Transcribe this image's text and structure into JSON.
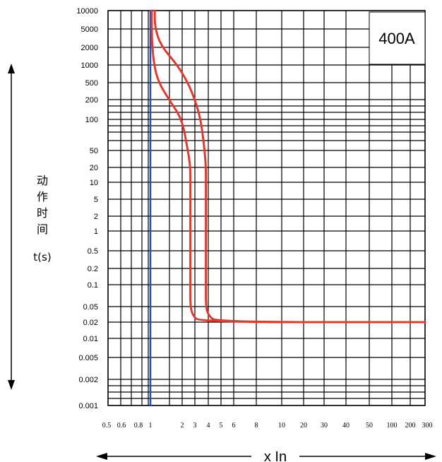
{
  "chart_data": {
    "type": "line",
    "rating_label": "400A",
    "ylabel_chars": [
      "动",
      "作",
      "时",
      "间"
    ],
    "ylabel_unit": "t(s)",
    "xlabel": "x In",
    "y_ticks": [
      "10000",
      "5000",
      "2000",
      "1000",
      "500",
      "200",
      "100",
      "50",
      "20",
      "10",
      "5",
      "2",
      "1",
      "0.5",
      "0.2",
      "0.1",
      "0.05",
      "0.02",
      "0.01",
      "0.005",
      "0.002",
      "0.001"
    ],
    "x_ticks": [
      "0.5",
      "0.6",
      "0.8",
      "1",
      "2",
      "3",
      "4",
      "5",
      "6",
      "8",
      "10",
      "20",
      "30",
      "40",
      "50",
      "100",
      "200",
      "300"
    ],
    "series": [
      {
        "color": "#1f4fb5",
        "points": [
          [
            1,
            10000
          ],
          [
            1,
            0.001
          ]
        ]
      },
      {
        "color": "#e03a2f",
        "points": [
          [
            1.1,
            10000
          ],
          [
            1.1,
            5500
          ],
          [
            1.25,
            2200
          ],
          [
            1.8,
            1000
          ],
          [
            2.4,
            500
          ],
          [
            3.0,
            200
          ],
          [
            3.4,
            100
          ],
          [
            3.7,
            50
          ],
          [
            3.8,
            20
          ],
          [
            3.8,
            10
          ],
          [
            3.8,
            1
          ],
          [
            3.8,
            0.1
          ],
          [
            3.8,
            0.05
          ],
          [
            4.0,
            0.03
          ],
          [
            4.6,
            0.02
          ],
          [
            300,
            0.02
          ]
        ]
      },
      {
        "color": "#e03a2f",
        "points": [
          [
            1.03,
            10000
          ],
          [
            1.03,
            3000
          ],
          [
            1.08,
            1000
          ],
          [
            1.2,
            500
          ],
          [
            1.5,
            200
          ],
          [
            2.0,
            100
          ],
          [
            2.4,
            50
          ],
          [
            2.6,
            20
          ],
          [
            2.6,
            10
          ],
          [
            2.6,
            1
          ],
          [
            2.6,
            0.1
          ],
          [
            2.6,
            0.05
          ],
          [
            2.8,
            0.03
          ],
          [
            3.3,
            0.02
          ],
          [
            300,
            0.02
          ]
        ]
      }
    ],
    "grid": true
  }
}
